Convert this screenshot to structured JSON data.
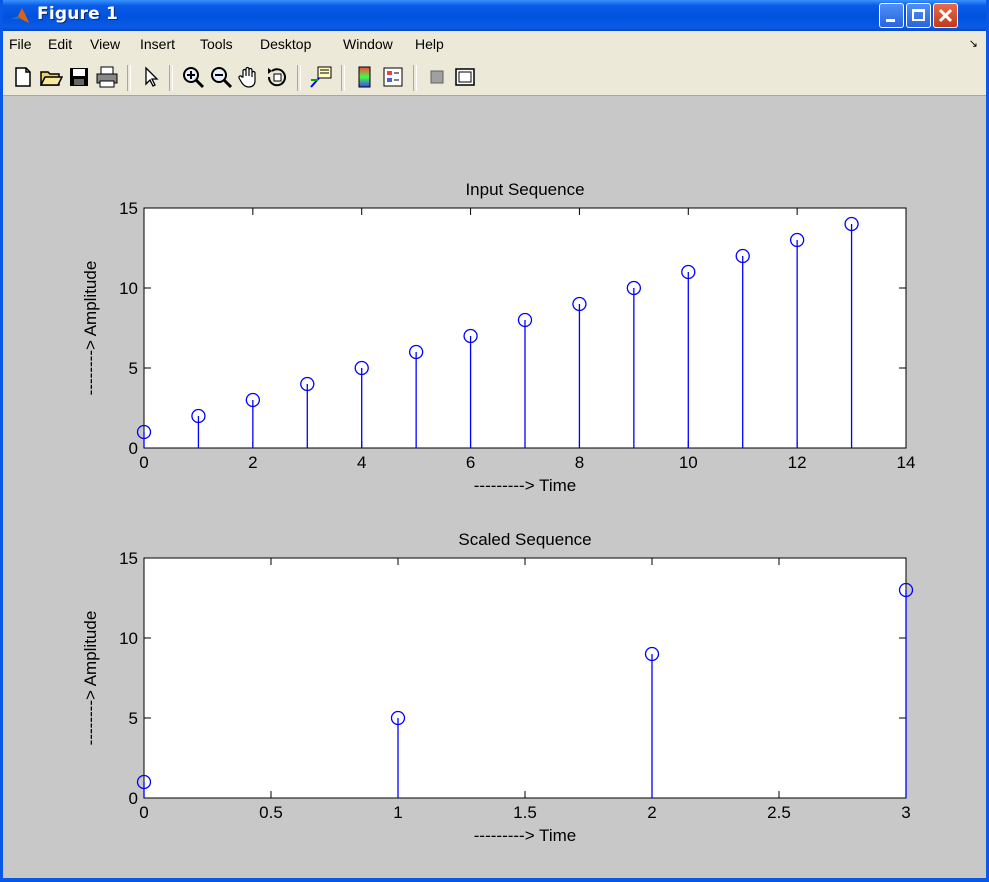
{
  "window": {
    "title": "Figure 1"
  },
  "menu": [
    "File",
    "Edit",
    "View",
    "Insert",
    "Tools",
    "Desktop",
    "Window",
    "Help"
  ],
  "toolbar_icons": [
    "new-file-icon",
    "open-folder-icon",
    "save-icon",
    "print-icon",
    "pointer-icon",
    "zoom-in-icon",
    "zoom-out-icon",
    "pan-hand-icon",
    "rotate-3d-icon",
    "data-cursor-icon",
    "colorbar-icon",
    "legend-icon",
    "hide-plot-tools-icon",
    "show-plot-tools-icon"
  ],
  "chart_data": [
    {
      "type": "stem",
      "title": "Input Sequence",
      "xlabel": "---------> Time",
      "ylabel": "--------> Amplitude",
      "xlim": [
        0,
        14
      ],
      "ylim": [
        0,
        15
      ],
      "xticks": [
        0,
        2,
        4,
        6,
        8,
        10,
        12,
        14
      ],
      "yticks": [
        0,
        5,
        10,
        15
      ],
      "x": [
        0,
        1,
        2,
        3,
        4,
        5,
        6,
        7,
        8,
        9,
        10,
        11,
        12,
        13
      ],
      "y": [
        1,
        2,
        3,
        4,
        5,
        6,
        7,
        8,
        9,
        10,
        11,
        12,
        13,
        14
      ],
      "color": "#0000ff"
    },
    {
      "type": "stem",
      "title": "Scaled Sequence",
      "xlabel": "---------> Time",
      "ylabel": "--------> Amplitude",
      "xlim": [
        0,
        3
      ],
      "ylim": [
        0,
        15
      ],
      "xticks": [
        0,
        0.5,
        1,
        1.5,
        2,
        2.5,
        3
      ],
      "yticks": [
        0,
        5,
        10,
        15
      ],
      "x": [
        0,
        1,
        2,
        3
      ],
      "y": [
        1,
        5,
        9,
        13
      ],
      "color": "#0000ff"
    }
  ]
}
